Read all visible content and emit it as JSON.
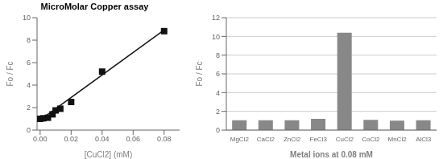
{
  "chart_data": [
    {
      "type": "scatter",
      "title": "MicroMolar Copper assay",
      "xlabel": "[CuCl2] (mM)",
      "ylabel": "Fo / Fc",
      "series": [
        {
          "type": "line",
          "color": "#111111",
          "x": [
            0.0,
            0.08
          ],
          "values": [
            0.9,
            8.9
          ]
        },
        {
          "type": "scatter",
          "color": "#111111",
          "marker": "square",
          "x": [
            0.0,
            0.002,
            0.005,
            0.008,
            0.01,
            0.013,
            0.02,
            0.04,
            0.08
          ],
          "values": [
            1.0,
            1.05,
            1.1,
            1.4,
            1.75,
            1.9,
            2.5,
            5.2,
            8.8
          ]
        }
      ],
      "xlim": [
        -0.002,
        0.09
      ],
      "ylim": [
        0.0,
        10.0
      ],
      "xticks": [
        {
          "value": 0.0,
          "label": "0.00"
        },
        {
          "value": 0.02,
          "label": "0.02"
        },
        {
          "value": 0.04,
          "label": "0.04"
        },
        {
          "value": 0.06,
          "label": "0.06"
        },
        {
          "value": 0.08,
          "label": "0.08"
        }
      ],
      "yticks": [
        0,
        2,
        4,
        6,
        8,
        10
      ],
      "grid": false
    },
    {
      "type": "bar",
      "xlabel": "Metal ions at 0.08 mM",
      "ylabel": "Fo / Fc",
      "categories": [
        "MgCl2",
        "CaCl2",
        "ZnCl2",
        "FeCl3",
        "CuCl2",
        "CoCl2",
        "MnCl2",
        "AlCl3"
      ],
      "values": [
        1.05,
        1.05,
        1.05,
        1.2,
        10.4,
        1.1,
        1.0,
        1.05
      ],
      "color": "#888888",
      "ylim": [
        0,
        12
      ],
      "yticks": [
        0,
        2,
        4,
        6,
        8,
        10,
        12
      ],
      "grid": true
    }
  ]
}
